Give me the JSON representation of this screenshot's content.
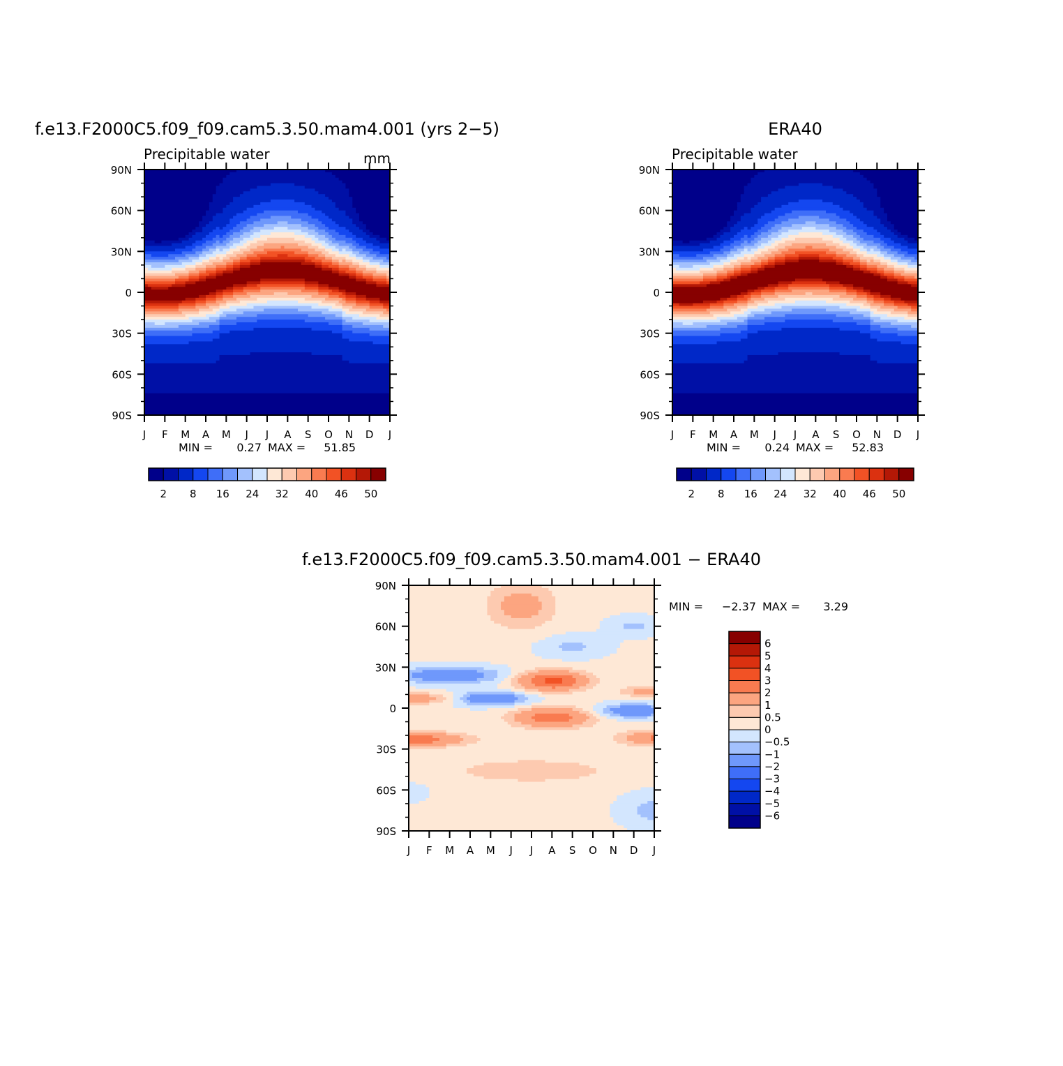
{
  "colors": {
    "abs_levels": [
      "#00008a",
      "#0010a6",
      "#0028c8",
      "#1447f0",
      "#3f6ef8",
      "#6f98fb",
      "#a3c1fd",
      "#d3e6fe",
      "#fee8d6",
      "#fdcab0",
      "#fca580",
      "#f97b50",
      "#f25225",
      "#db3110",
      "#b41806",
      "#870000"
    ],
    "diff_levels": [
      "#00008a",
      "#0010a6",
      "#0028c8",
      "#1447f0",
      "#3f6ef8",
      "#6f98fb",
      "#a3c1fd",
      "#d3e6fe",
      "#fee8d6",
      "#fdcab0",
      "#fca580",
      "#f97b50",
      "#f25225",
      "#db3110",
      "#b41806",
      "#870000"
    ]
  },
  "chart_data": [
    {
      "type": "heatmap",
      "id": "model",
      "title": "f.e13.F2000C5.f09_f09.cam5.3.50.mam4.001 (yrs 2−5)",
      "left_label": "Precipitable water",
      "right_label": "mm",
      "x_tick_labels": [
        "J",
        "F",
        "M",
        "A",
        "M",
        "J",
        "J",
        "A",
        "S",
        "O",
        "N",
        "D",
        "J"
      ],
      "y_tick_labels": [
        "90N",
        "60N",
        "30N",
        "0",
        "30S",
        "60S",
        "90S"
      ],
      "ylim": [
        -90,
        90
      ],
      "min_label": "MIN =",
      "min_value": "0.27",
      "max_label": "MAX =",
      "max_value": "51.85",
      "min": 0.27,
      "max": 51.85,
      "colorbar_labels": [
        "2",
        "8",
        "16",
        "24",
        "32",
        "40",
        "46",
        "50"
      ],
      "levels": [
        2,
        4,
        8,
        12,
        16,
        20,
        24,
        28,
        32,
        36,
        40,
        43,
        46,
        48,
        50
      ]
    },
    {
      "type": "heatmap",
      "id": "obs",
      "title": "ERA40",
      "left_label": "Precipitable water",
      "right_label": "",
      "x_tick_labels": [
        "J",
        "F",
        "M",
        "A",
        "M",
        "J",
        "J",
        "A",
        "S",
        "O",
        "N",
        "D",
        "J"
      ],
      "y_tick_labels": [
        "90N",
        "60N",
        "30N",
        "0",
        "30S",
        "60S",
        "90S"
      ],
      "ylim": [
        -90,
        90
      ],
      "min_label": "MIN =",
      "min_value": "0.24",
      "max_label": "MAX =",
      "max_value": "52.83",
      "min": 0.24,
      "max": 52.83,
      "colorbar_labels": [
        "2",
        "8",
        "16",
        "24",
        "32",
        "40",
        "46",
        "50"
      ],
      "levels": [
        2,
        4,
        8,
        12,
        16,
        20,
        24,
        28,
        32,
        36,
        40,
        43,
        46,
        48,
        50
      ]
    },
    {
      "type": "heatmap",
      "id": "diff",
      "title": "f.e13.F2000C5.f09_f09.cam5.3.50.mam4.001 − ERA40",
      "x_tick_labels": [
        "J",
        "F",
        "M",
        "A",
        "M",
        "J",
        "J",
        "A",
        "S",
        "O",
        "N",
        "D",
        "J"
      ],
      "y_tick_labels": [
        "90N",
        "60N",
        "30N",
        "0",
        "30S",
        "60S",
        "90S"
      ],
      "ylim": [
        -90,
        90
      ],
      "min_label": "MIN =",
      "min_value": "−2.37",
      "max_label": "MAX =",
      "max_value": "3.29",
      "min": -2.37,
      "max": 3.29,
      "colorbar_labels": [
        "6",
        "5",
        "4",
        "3",
        "2",
        "1",
        "0.5",
        "0",
        "−0.5",
        "−1",
        "−2",
        "−3",
        "−4",
        "−5",
        "−6"
      ],
      "levels": [
        -6,
        -5,
        -4,
        -3,
        -2,
        -1,
        -0.5,
        0,
        0.5,
        1,
        2,
        3,
        4,
        5,
        6
      ]
    }
  ]
}
